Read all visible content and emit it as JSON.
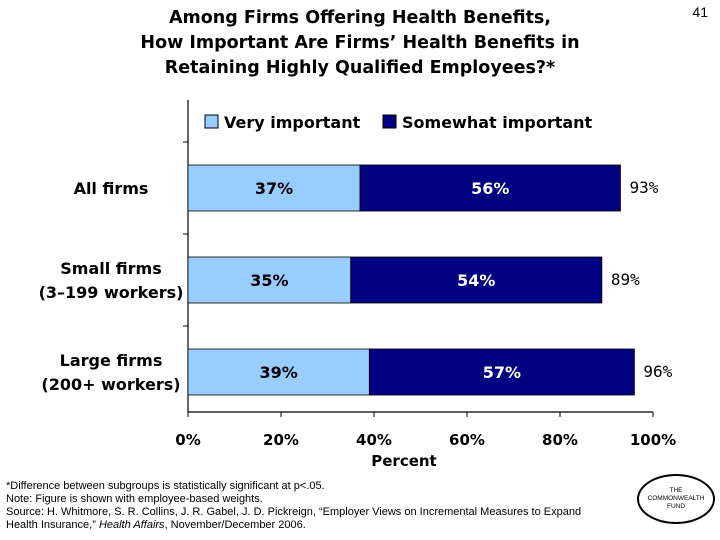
{
  "slide_number": "41",
  "title_lines": [
    "Among Firms Offering Health Benefits,",
    "How Important Are Firms’ Health Benefits in",
    "Retaining Highly Qualified Employees?*"
  ],
  "colors": {
    "very_important": "#99ccff",
    "somewhat_important": "#000080",
    "very_important_text": "#000000",
    "somewhat_important_text": "#ffffff"
  },
  "chart_data": {
    "type": "bar",
    "orientation": "horizontal",
    "stacked": true,
    "categories": [
      [
        "All firms"
      ],
      [
        "Small firms",
        "(3–199 workers)"
      ],
      [
        "Large firms",
        "(200+ workers)"
      ]
    ],
    "series": [
      {
        "name": "Very important",
        "values": [
          37,
          35,
          39
        ],
        "labels": [
          "37%",
          "35%",
          "39%"
        ]
      },
      {
        "name": "Somewhat important",
        "values": [
          56,
          54,
          57
        ],
        "labels": [
          "56%",
          "54%",
          "57%"
        ]
      }
    ],
    "totals": [
      "93%",
      "89%",
      "96%"
    ],
    "xlim": [
      0,
      100
    ],
    "xticks": [
      0,
      20,
      40,
      60,
      80,
      100
    ],
    "xtick_labels": [
      "0%",
      "20%",
      "40%",
      "60%",
      "80%",
      "100%"
    ],
    "xlabel": "Percent",
    "legend_position": "top",
    "grid": false
  },
  "footnotes": {
    "line1": "*Difference between subgroups is statistically significant at p<.05.",
    "line2": "Note: Figure is shown with employee-based weights.",
    "line3": "Source: H. Whitmore, S. R. Collins, J. R. Gabel, J. D. Pickreign, “Employer Views on Incremental Measures to Expand",
    "line4_plain": "Health Insurance,” ",
    "line4_italic": "Health Affairs",
    "line4_end": ", November/December 2006."
  },
  "logo": {
    "text": "THE\nCOMMONWEALTH\nFUND"
  }
}
